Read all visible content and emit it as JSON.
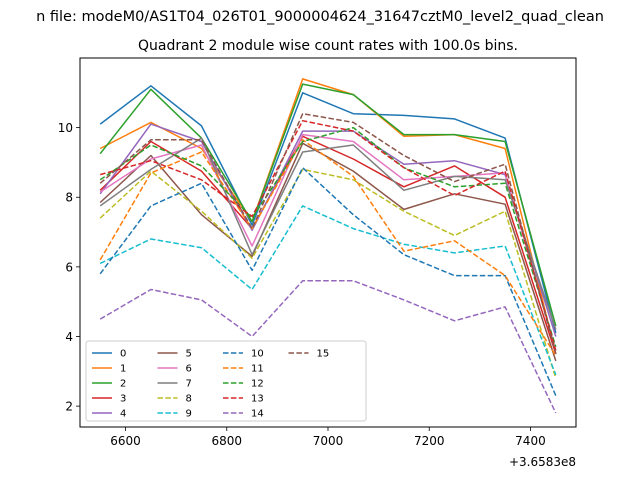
{
  "suptitle": "n file: modeM0/AS1T04_026T01_9000004624_31647cztM0_level2_quad_clean",
  "chart_data": {
    "type": "line",
    "title": "Quadrant 2 module wise count rates with 100.0s bins.",
    "xlabel": "",
    "ylabel": "",
    "x_offset_label": "+3.6583e8",
    "x": [
      6550,
      6650,
      6750,
      6850,
      6950,
      7050,
      7150,
      7250,
      7350,
      7450
    ],
    "xlim": [
      6510,
      7490
    ],
    "ylim": [
      1.4,
      12.0
    ],
    "x_ticks": [
      6600,
      6800,
      7000,
      7200,
      7400
    ],
    "x_tick_labels": [
      "6600",
      "6800",
      "7000",
      "7200",
      "7400"
    ],
    "y_ticks": [
      2,
      4,
      6,
      8,
      10
    ],
    "y_tick_labels": [
      "2",
      "4",
      "6",
      "8",
      "10"
    ],
    "legend_position": "lower-left",
    "legend_columns": 4,
    "series": [
      {
        "name": "0",
        "color": "#1f77b4",
        "dashed": false,
        "values": [
          10.1,
          11.2,
          10.05,
          7.2,
          11.0,
          10.4,
          10.35,
          10.25,
          9.7,
          4.1
        ]
      },
      {
        "name": "1",
        "color": "#ff7f0e",
        "dashed": false,
        "values": [
          9.4,
          10.15,
          9.4,
          7.3,
          11.4,
          10.95,
          9.75,
          9.8,
          9.4,
          3.5
        ]
      },
      {
        "name": "2",
        "color": "#2ca02c",
        "dashed": false,
        "values": [
          9.25,
          11.1,
          9.7,
          7.3,
          11.25,
          10.95,
          9.8,
          9.8,
          9.6,
          4.3
        ]
      },
      {
        "name": "3",
        "color": "#d62728",
        "dashed": false,
        "values": [
          8.2,
          9.6,
          8.75,
          7.1,
          9.75,
          9.1,
          8.3,
          8.9,
          8.0,
          3.5
        ]
      },
      {
        "name": "4",
        "color": "#9467bd",
        "dashed": false,
        "values": [
          8.1,
          10.1,
          9.6,
          7.05,
          9.9,
          9.9,
          8.95,
          9.05,
          8.65,
          4.0
        ]
      },
      {
        "name": "5",
        "color": "#8c564b",
        "dashed": false,
        "values": [
          7.85,
          9.2,
          7.5,
          6.3,
          9.55,
          8.75,
          7.65,
          8.1,
          7.8,
          3.3
        ]
      },
      {
        "name": "6",
        "color": "#e377c2",
        "dashed": false,
        "values": [
          8.15,
          9.1,
          9.5,
          6.6,
          9.8,
          9.6,
          8.5,
          8.6,
          8.7,
          3.6
        ]
      },
      {
        "name": "7",
        "color": "#7f7f7f",
        "dashed": false,
        "values": [
          7.75,
          8.8,
          9.7,
          6.35,
          9.3,
          9.5,
          8.2,
          8.6,
          8.5,
          4.2
        ]
      },
      {
        "name": "8",
        "color": "#bcbd22",
        "dashed": true,
        "values": [
          7.4,
          8.75,
          7.6,
          6.25,
          8.8,
          8.5,
          7.6,
          6.9,
          7.6,
          2.8
        ]
      },
      {
        "name": "9",
        "color": "#17becf",
        "dashed": true,
        "values": [
          6.1,
          6.8,
          6.55,
          5.35,
          7.75,
          7.1,
          6.65,
          6.4,
          6.6,
          2.9
        ]
      },
      {
        "name": "10",
        "color": "#1f77b4",
        "dashed": true,
        "values": [
          5.8,
          7.75,
          8.4,
          5.9,
          8.85,
          7.5,
          6.35,
          5.75,
          5.75,
          2.3
        ]
      },
      {
        "name": "11",
        "color": "#ff7f0e",
        "dashed": true,
        "values": [
          6.2,
          8.7,
          9.3,
          7.1,
          9.65,
          8.6,
          6.45,
          6.75,
          5.75,
          3.45
        ]
      },
      {
        "name": "12",
        "color": "#2ca02c",
        "dashed": true,
        "values": [
          8.5,
          9.5,
          8.9,
          7.4,
          9.6,
          10.0,
          8.85,
          8.3,
          8.4,
          3.7
        ]
      },
      {
        "name": "13",
        "color": "#d62728",
        "dashed": true,
        "values": [
          8.65,
          9.05,
          8.5,
          7.45,
          10.2,
          9.9,
          8.85,
          8.05,
          8.75,
          3.6
        ]
      },
      {
        "name": "14",
        "color": "#9467bd",
        "dashed": true,
        "values": [
          4.5,
          5.35,
          5.05,
          4.0,
          5.6,
          5.6,
          5.05,
          4.45,
          4.85,
          1.8
        ]
      },
      {
        "name": "15",
        "color": "#8c564b",
        "dashed": true,
        "values": [
          8.4,
          9.65,
          9.65,
          7.1,
          10.4,
          10.15,
          9.2,
          8.45,
          8.95,
          3.5
        ]
      }
    ]
  }
}
